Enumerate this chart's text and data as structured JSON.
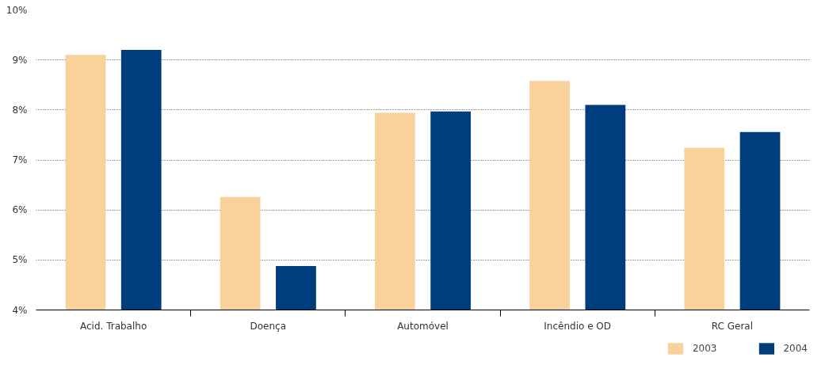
{
  "chart_data": {
    "type": "bar",
    "categories": [
      "Acid. Trabalho",
      "Doença",
      "Automóvel",
      "Incêndio e OD",
      "RC Geral"
    ],
    "series": [
      {
        "name": "2003",
        "color": "#f9d29b",
        "values": [
          9.1,
          6.26,
          7.94,
          8.58,
          7.24
        ]
      },
      {
        "name": "2004",
        "color": "#003d7c",
        "values": [
          9.2,
          4.88,
          7.97,
          8.1,
          7.56
        ]
      }
    ],
    "ylim": [
      4,
      10
    ],
    "yticks": [
      {
        "value": 4,
        "label": "4%"
      },
      {
        "value": 5,
        "label": "5%"
      },
      {
        "value": 6,
        "label": "6%"
      },
      {
        "value": 7,
        "label": "7%"
      },
      {
        "value": 8,
        "label": "8%"
      },
      {
        "value": 9,
        "label": "9%"
      },
      {
        "value": 10,
        "label": "10%"
      }
    ],
    "grid": "y",
    "legend": "bottom right"
  }
}
